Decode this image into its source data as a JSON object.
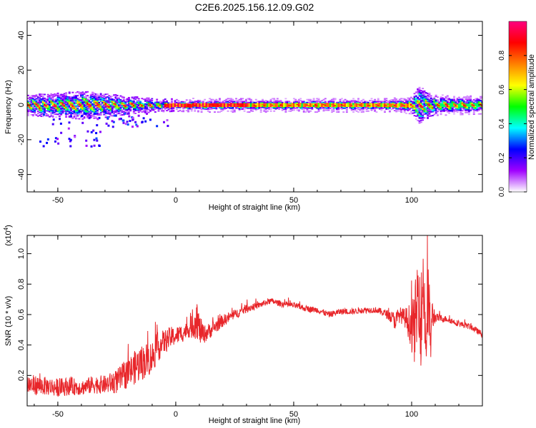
{
  "figure": {
    "title": "C2E6.2025.156.12.09.G02"
  },
  "chart_data": [
    {
      "type": "heatmap",
      "title": "C2E6.2025.156.12.09.G02",
      "xlabel": "Height of straight line (km)",
      "ylabel": "Frequency (Hz)",
      "xlim": [
        -63,
        130
      ],
      "ylim": [
        -50,
        48
      ],
      "xticks": [
        -50,
        0,
        50,
        100
      ],
      "yticks": [
        -40,
        -20,
        0,
        20,
        40
      ],
      "grid": false,
      "ridge_center_frequency_hz": 0,
      "band_halfwidth_hz": [
        {
          "x": -63,
          "w": 4
        },
        {
          "x": -50,
          "w": 5
        },
        {
          "x": -40,
          "w": 6
        },
        {
          "x": -30,
          "w": 5
        },
        {
          "x": -20,
          "w": 3
        },
        {
          "x": -10,
          "w": 2
        },
        {
          "x": 0,
          "w": 1.5
        },
        {
          "x": 10,
          "w": 2
        },
        {
          "x": 30,
          "w": 2
        },
        {
          "x": 60,
          "w": 2
        },
        {
          "x": 90,
          "w": 2
        },
        {
          "x": 100,
          "w": 3
        },
        {
          "x": 103,
          "w": 9
        },
        {
          "x": 108,
          "w": 4
        },
        {
          "x": 130,
          "w": 3
        }
      ],
      "colorbar": {
        "label": "Normalized spectral amplitude",
        "range": [
          0.0,
          1.0
        ],
        "ticks": [
          "0.0",
          "0.2",
          "0.4",
          "0.6",
          "0.8"
        ],
        "ticks_values": [
          0.0,
          0.2,
          0.4,
          0.6,
          0.8
        ],
        "colormap": [
          "#ffffff",
          "#a000ff",
          "#0000ff",
          "#00ffff",
          "#00ff00",
          "#ffff00",
          "#ff8000",
          "#ff0000",
          "#ff0080"
        ]
      }
    },
    {
      "type": "line",
      "xlabel": "Height of straight line (km)",
      "ylabel": "SNR (10 * v/v)",
      "scale_note": "(x10",
      "scale_exp": "4",
      "scale_close": ")",
      "xlim": [
        -63,
        130
      ],
      "ylim": [
        0.0,
        1.12
      ],
      "xticks": [
        -50,
        0,
        50,
        100
      ],
      "yticks": [
        0.2,
        0.4,
        0.6,
        0.8,
        1.0
      ],
      "grid": false,
      "series": [
        {
          "color": "#e8262a",
          "x": [
            -63,
            -55,
            -50,
            -45,
            -40,
            -35,
            -30,
            -25,
            -20,
            -15,
            -10,
            -8,
            -5,
            -2,
            0,
            3,
            5,
            7,
            9,
            10,
            12,
            15,
            20,
            25,
            30,
            35,
            40,
            45,
            50,
            55,
            60,
            65,
            70,
            75,
            80,
            85,
            90,
            93,
            95,
            97,
            99,
            101,
            102,
            103,
            104,
            105,
            106,
            107,
            108,
            109,
            110,
            115,
            120,
            125,
            130
          ],
          "y": [
            0.14,
            0.13,
            0.12,
            0.13,
            0.12,
            0.14,
            0.14,
            0.16,
            0.22,
            0.28,
            0.32,
            0.38,
            0.42,
            0.45,
            0.46,
            0.48,
            0.5,
            0.52,
            0.58,
            0.5,
            0.47,
            0.5,
            0.56,
            0.6,
            0.64,
            0.66,
            0.69,
            0.67,
            0.66,
            0.64,
            0.63,
            0.6,
            0.62,
            0.62,
            0.63,
            0.63,
            0.6,
            0.56,
            0.6,
            0.58,
            0.55,
            0.5,
            0.6,
            0.8,
            0.55,
            0.85,
            0.4,
            0.7,
            0.45,
            0.6,
            0.58,
            0.57,
            0.54,
            0.52,
            0.47
          ],
          "noise": [
            0.07,
            0.06,
            0.06,
            0.06,
            0.05,
            0.06,
            0.06,
            0.08,
            0.1,
            0.12,
            0.11,
            0.1,
            0.08,
            0.07,
            0.06,
            0.06,
            0.05,
            0.08,
            0.14,
            0.1,
            0.06,
            0.05,
            0.04,
            0.03,
            0.03,
            0.02,
            0.02,
            0.02,
            0.02,
            0.02,
            0.02,
            0.02,
            0.02,
            0.02,
            0.02,
            0.02,
            0.03,
            0.06,
            0.05,
            0.06,
            0.12,
            0.22,
            0.3,
            0.3,
            0.32,
            0.3,
            0.25,
            0.28,
            0.2,
            0.12,
            0.03,
            0.02,
            0.02,
            0.02,
            0.02
          ]
        }
      ]
    }
  ]
}
